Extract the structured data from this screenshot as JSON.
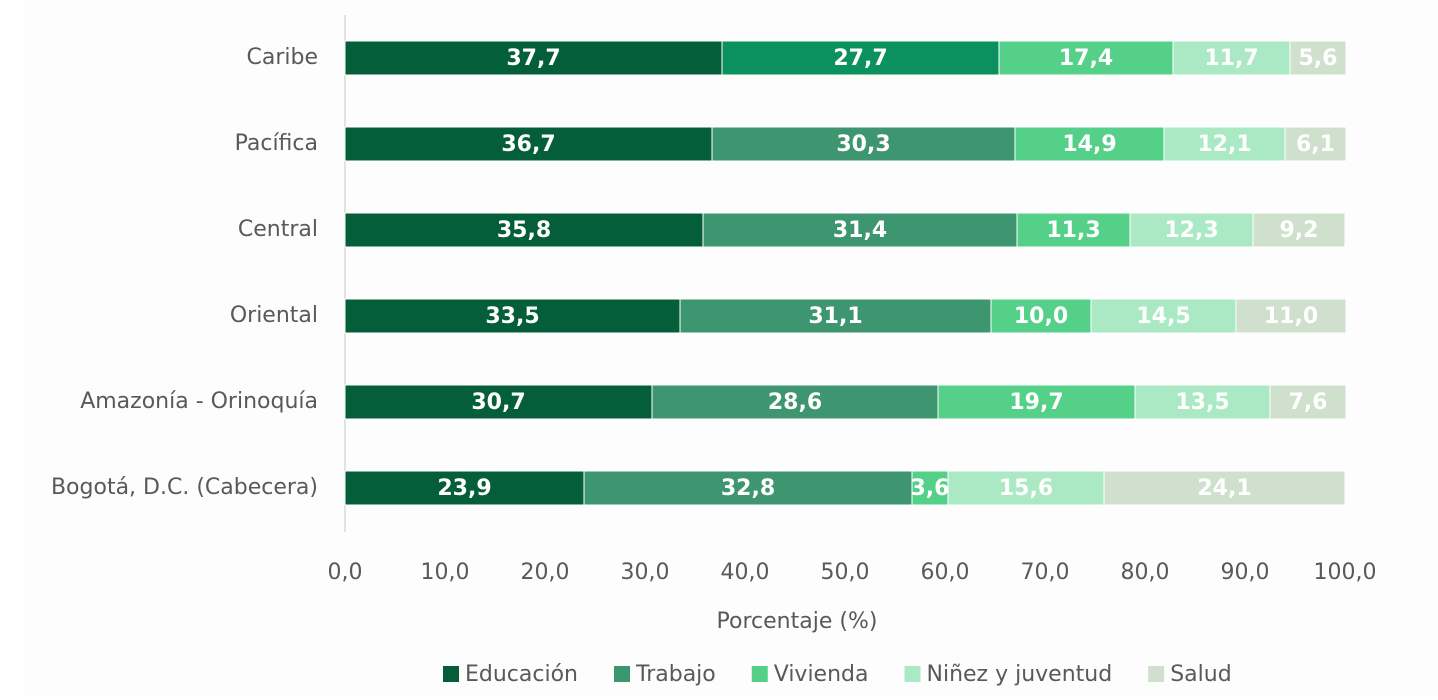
{
  "chart_data": {
    "type": "stacked_bar_horizontal",
    "x_label": "Porcentaje (%)",
    "categories": [
      "Caribe",
      "Pacífica",
      "Central",
      "Oriental",
      "Amazonía - Orinoquía",
      "Bogotá, D.C. (Cabecera)"
    ],
    "series": [
      {
        "name": "Educación",
        "color": "#055e3a",
        "values": [
          37.7,
          36.7,
          35.8,
          33.5,
          30.7,
          23.9
        ],
        "value_labels": [
          "37,7",
          "36,7",
          "35,8",
          "33,5",
          "30,7",
          "23,9"
        ]
      },
      {
        "name": "Trabajo",
        "color": "#3e9670",
        "colors": [
          "#0b9160",
          "#3e9670",
          "#3e9670",
          "#3e9670",
          "#3e9670",
          "#3e9670"
        ],
        "values": [
          27.7,
          30.3,
          31.4,
          31.1,
          28.6,
          32.8
        ],
        "value_labels": [
          "27,7",
          "30,3",
          "31,4",
          "31,1",
          "28,6",
          "32,8"
        ]
      },
      {
        "name": "Vivienda",
        "color": "#55d088",
        "values": [
          17.4,
          14.9,
          11.3,
          10.0,
          19.7,
          3.6
        ],
        "value_labels": [
          "17,4",
          "14,9",
          "11,3",
          "10,0",
          "19,7",
          "3,6"
        ]
      },
      {
        "name": "Niñez y juventud",
        "color": "#abe9c4",
        "values": [
          11.7,
          12.1,
          12.3,
          14.5,
          13.5,
          15.6
        ],
        "value_labels": [
          "11,7",
          "12,1",
          "12,3",
          "14,5",
          "13,5",
          "15,6"
        ]
      },
      {
        "name": "Salud",
        "color": "#cfe0cd",
        "values": [
          5.6,
          6.1,
          9.2,
          11.0,
          7.6,
          24.1
        ],
        "value_labels": [
          "5,6",
          "6,1",
          "9,2",
          "11,0",
          "7,6",
          "24,1"
        ]
      }
    ],
    "xlim": [
      0,
      100
    ],
    "xticks": [
      {
        "value": 0,
        "label": "0,0"
      },
      {
        "value": 10,
        "label": "10,0"
      },
      {
        "value": 20,
        "label": "20,0"
      },
      {
        "value": 30,
        "label": "30,0"
      },
      {
        "value": 40,
        "label": "40,0"
      },
      {
        "value": 50,
        "label": "50,0"
      },
      {
        "value": 60,
        "label": "60,0"
      },
      {
        "value": 70,
        "label": "70,0"
      },
      {
        "value": 80,
        "label": "80,0"
      },
      {
        "value": 90,
        "label": "90,0"
      },
      {
        "value": 100,
        "label": "100,0"
      }
    ],
    "legend": "bottom"
  }
}
